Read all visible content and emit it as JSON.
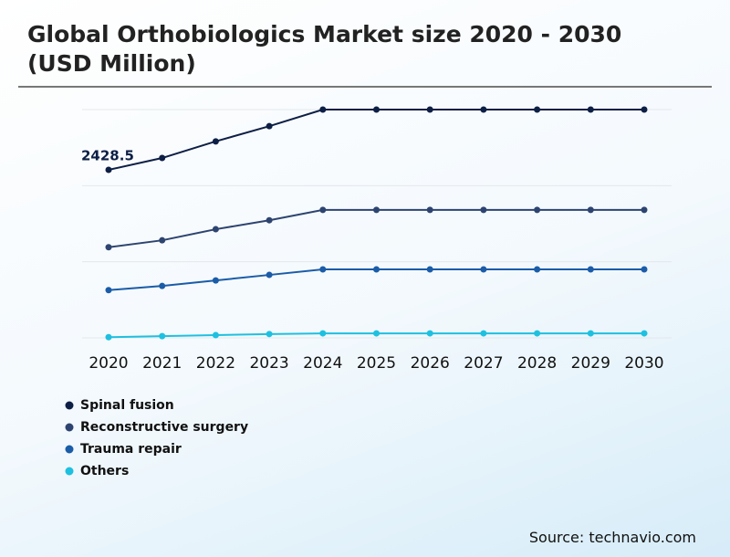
{
  "chart_data": {
    "type": "line",
    "title": "Global Orthobiologics Market size 2020 - 2030 (USD Million)",
    "source": "Source: technavio.com",
    "categories": [
      "2020",
      "2021",
      "2022",
      "2023",
      "2024",
      "2025",
      "2026",
      "2027",
      "2028",
      "2029",
      "2030"
    ],
    "series": [
      {
        "name": "Spinal fusion",
        "color": "#0d1f45",
        "values": [
          2428.5,
          2600,
          2840,
          3060,
          3300,
          3300,
          3300,
          3300,
          3300,
          3300,
          3300
        ],
        "value_labels": [
          "2428.5",
          null,
          null,
          null,
          null,
          null,
          null,
          null,
          null,
          null,
          null
        ]
      },
      {
        "name": "Reconstructive surgery",
        "color": "#2e4470",
        "values": [
          1310,
          1410,
          1570,
          1700,
          1850,
          1850,
          1850,
          1850,
          1850,
          1850,
          1850
        ]
      },
      {
        "name": "Trauma repair",
        "color": "#1a5ca8",
        "values": [
          690,
          750,
          830,
          910,
          990,
          990,
          990,
          990,
          990,
          990,
          990
        ]
      },
      {
        "name": "Others",
        "color": "#1ec0e0",
        "values": [
          10,
          25,
          40,
          55,
          65,
          65,
          65,
          65,
          65,
          65,
          65
        ]
      }
    ],
    "ylim": [
      0,
      3300
    ],
    "yticks": [
      0,
      1100,
      2200,
      3300
    ],
    "grid": true
  }
}
